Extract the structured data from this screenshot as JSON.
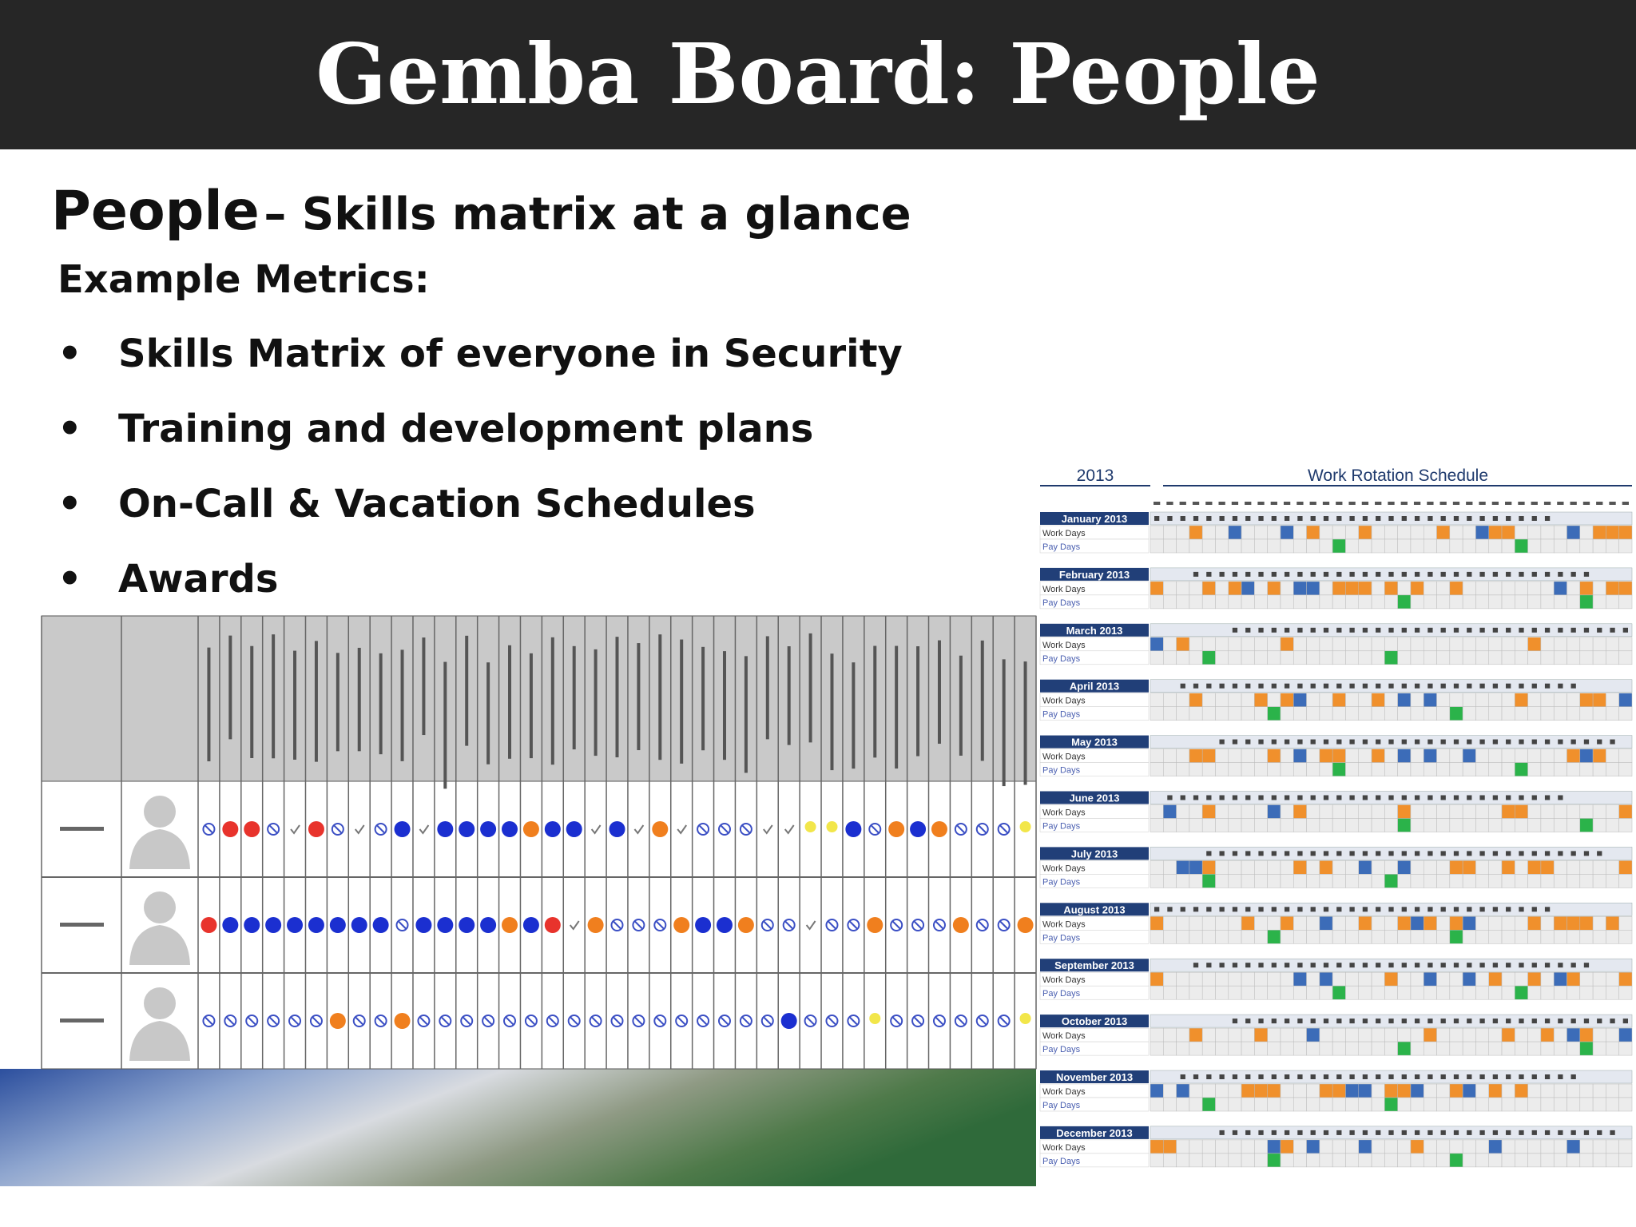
{
  "header": {
    "title": "Gemba Board: People"
  },
  "subtitle": {
    "main": "People",
    "rest": "– Skills matrix at a glance"
  },
  "metrics_heading": "Example Metrics:",
  "bullets": [
    "Skills Matrix of everyone in Security",
    "Training and development plans",
    "On-Call & Vacation Schedules",
    "Awards"
  ],
  "schedule": {
    "year": "2013",
    "title": "Work Rotation Schedule",
    "months": [
      "January 2013",
      "February 2013",
      "March 2013",
      "April 2013",
      "May 2013",
      "June 2013",
      "July 2013",
      "August 2013",
      "September 2013",
      "October 2013",
      "November 2013",
      "December 2013"
    ],
    "row_labels": [
      "Work Days",
      "Pay Days"
    ]
  }
}
